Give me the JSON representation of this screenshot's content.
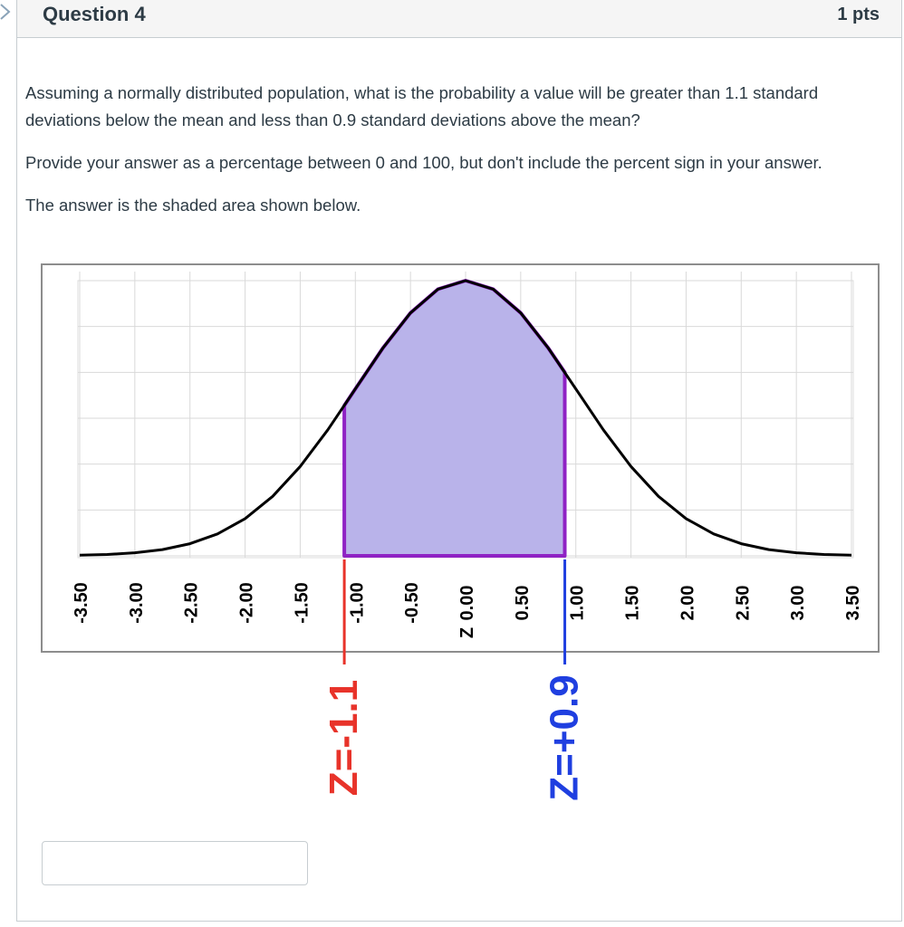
{
  "question": {
    "title": "Question 4",
    "points": "1 pts",
    "paragraphs": [
      "Assuming a normally distributed population, what is the probability a value will be greater than 1.1 standard deviations below the mean and less than 0.9 standard deviations above the mean?",
      "Provide your answer as a percentage between 0 and 100, but don't include the percent sign in your answer.",
      "The answer is the shaded area shown below."
    ]
  },
  "answer": {
    "value": "",
    "placeholder": ""
  },
  "colors": {
    "shade_fill": "#b9b3ea",
    "shade_outline": "#8f22c4",
    "curve": "#000000",
    "left_marker": "#e8332a",
    "right_marker": "#1f3fe0",
    "grid": "#d9d9d9"
  },
  "chart_data": {
    "type": "area",
    "x_tick_labels": [
      "-3.50",
      "-3.00",
      "-2.50",
      "-2.00",
      "-1.50",
      "-1.00",
      "-0.50",
      "0.00",
      "0.50",
      "1.00",
      "1.50",
      "2.00",
      "2.50",
      "3.00",
      "3.50"
    ],
    "x_ticks": [
      -3.5,
      -3.0,
      -2.5,
      -2.0,
      -1.5,
      -1.0,
      -0.5,
      0.0,
      0.5,
      1.0,
      1.5,
      2.0,
      2.5,
      3.0,
      3.5
    ],
    "zero_axis_label": "Z",
    "xlim": [
      -3.5,
      3.5
    ],
    "curve": "standard normal density",
    "shaded_region": {
      "from": -1.1,
      "to": 0.9
    },
    "annotations": [
      {
        "text": "Z=-1.1",
        "x": -1.1,
        "color": "#e8332a"
      },
      {
        "text": "Z=+0.9",
        "x": 0.9,
        "color": "#1f3fe0"
      }
    ],
    "grid": true,
    "legend": "none"
  }
}
